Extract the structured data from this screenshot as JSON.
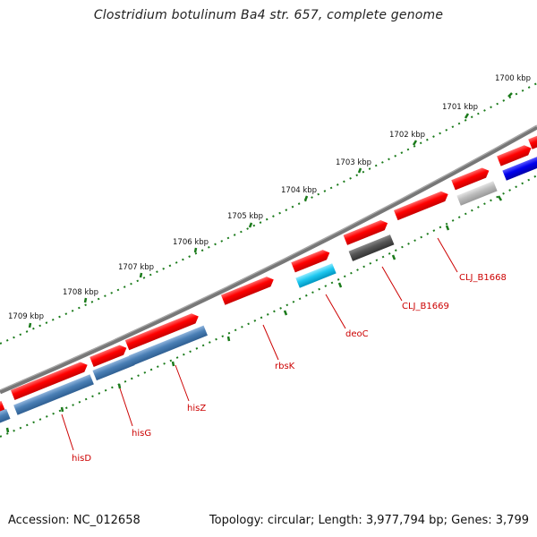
{
  "title": "Clostridium botulinum Ba4 str. 657, complete genome",
  "accession": "Accession: NC_012658",
  "summary": "Topology: circular; Length: 3,977,794 bp; Genes: 3,799",
  "scale_labels": [
    "1700 kbp",
    "1701 kbp",
    "1702 kbp",
    "1703 kbp",
    "1704 kbp",
    "1705 kbp",
    "1706 kbp",
    "1707 kbp",
    "1708 kbp",
    "1709 kbp"
  ],
  "gene_labels": [
    "CLJ_B1668",
    "CLJ_B1669",
    "deoC",
    "rbsK",
    "hisZ",
    "hisG",
    "hisD"
  ],
  "colors": {
    "backbone": "#777777",
    "gene_forward": "#ff0000",
    "gene_blue": "#4a7fb5",
    "gene_cyan": "#1ec8f0",
    "gene_dark_gray": "#555555",
    "gene_light_gray": "#bbbbbb",
    "gene_navy": "#0000ee",
    "tick": "#1a7a1a",
    "label": "#cc0000"
  }
}
